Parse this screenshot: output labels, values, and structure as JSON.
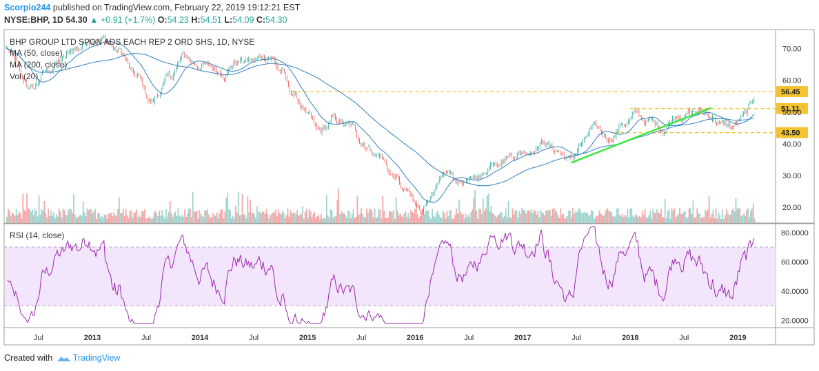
{
  "header": {
    "author": "Scorpio244",
    "published": "published on TradingView.com, February 22, 2019 19:12:21 EST",
    "symbol_line": "NYSE:BHP, 1D 54.30",
    "change": "▲ +0.91 (+1.7%)",
    "o_label": "O:",
    "o_value": "54.23",
    "h_label": "H:",
    "h_value": "54.51",
    "l_label": "L:",
    "l_value": "54.09",
    "c_label": "C:",
    "c_value": "54.30"
  },
  "colors": {
    "up": "#26a69a",
    "down": "#ef5350",
    "ma50": "#2f7fc1",
    "ma200": "#2f7fc1",
    "rsi": "#9c27b0",
    "rsi_band": "#f3e5fb",
    "level": "#f4c430",
    "trend": "#39e639",
    "vol_up": "#9fd4cf",
    "vol_down": "#f2a8a6"
  },
  "chart_data": [
    {
      "type": "line",
      "title": "BHP GROUP LTD SPON ADS EACH REP 2 ORD SHS, 1D, NYSE",
      "legend": [
        "MA (50, close)",
        "MA (200, close)",
        "Vol (20)"
      ],
      "x_ticks": [
        "Jul",
        "2013",
        "Jul",
        "2014",
        "Jul",
        "2015",
        "Jul",
        "2016",
        "Jul",
        "2017",
        "Jul",
        "2018",
        "Jul",
        "2019"
      ],
      "y_ticks": [
        "70.00",
        "60.00",
        "50.00",
        "40.00",
        "30.00",
        "20.00"
      ],
      "ylim": [
        15,
        76
      ],
      "price_anchors": [
        [
          2012.2,
          70
        ],
        [
          2012.28,
          66
        ],
        [
          2012.35,
          59
        ],
        [
          2012.45,
          57
        ],
        [
          2012.55,
          62
        ],
        [
          2012.7,
          66
        ],
        [
          2012.85,
          70
        ],
        [
          2013.0,
          74
        ],
        [
          2013.1,
          73
        ],
        [
          2013.25,
          69
        ],
        [
          2013.4,
          61
        ],
        [
          2013.55,
          53
        ],
        [
          2013.7,
          60
        ],
        [
          2013.85,
          67
        ],
        [
          2014.0,
          65
        ],
        [
          2014.2,
          63
        ],
        [
          2014.35,
          66
        ],
        [
          2014.5,
          66
        ],
        [
          2014.65,
          68
        ],
        [
          2014.75,
          63
        ],
        [
          2014.85,
          56
        ],
        [
          2014.95,
          52
        ],
        [
          2015.0,
          48
        ],
        [
          2015.1,
          43
        ],
        [
          2015.25,
          47
        ],
        [
          2015.4,
          45
        ],
        [
          2015.5,
          41
        ],
        [
          2015.65,
          37
        ],
        [
          2015.8,
          30
        ],
        [
          2015.9,
          25
        ],
        [
          2016.05,
          19
        ],
        [
          2016.15,
          24
        ],
        [
          2016.3,
          30
        ],
        [
          2016.4,
          28
        ],
        [
          2016.5,
          28
        ],
        [
          2016.6,
          30
        ],
        [
          2016.75,
          35
        ],
        [
          2016.9,
          37
        ],
        [
          2017.05,
          38
        ],
        [
          2017.2,
          41
        ],
        [
          2017.3,
          38
        ],
        [
          2017.45,
          35
        ],
        [
          2017.55,
          40
        ],
        [
          2017.65,
          44
        ],
        [
          2017.8,
          42
        ],
        [
          2017.95,
          47
        ],
        [
          2018.05,
          49
        ],
        [
          2018.15,
          47
        ],
        [
          2018.3,
          45
        ],
        [
          2018.45,
          50
        ],
        [
          2018.6,
          50
        ],
        [
          2018.75,
          49
        ],
        [
          2018.85,
          46
        ],
        [
          2018.95,
          45
        ],
        [
          2019.05,
          48
        ],
        [
          2019.12,
          51
        ],
        [
          2019.15,
          54.3
        ]
      ],
      "levels": [
        {
          "value": 56.45,
          "label": "56.45",
          "from": 2014.85
        },
        {
          "value": 51.11,
          "label": "51.11",
          "from": 2018.0
        },
        {
          "value": 43.5,
          "label": "43.50",
          "from": 2017.85
        }
      ],
      "trendline": {
        "x": [
          2017.45,
          2018.75
        ],
        "y": [
          34,
          51.3
        ]
      },
      "last_price": 54.3
    },
    {
      "type": "line",
      "title": "RSI (14, close)",
      "y_ticks": [
        "80.0000",
        "60.0000",
        "40.0000",
        "20.0000"
      ],
      "ylim": [
        15,
        86
      ],
      "band": [
        30,
        70
      ]
    }
  ],
  "footer": {
    "created": "Created with",
    "brand": "TradingView"
  }
}
